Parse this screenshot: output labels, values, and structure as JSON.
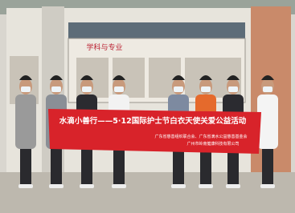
{
  "photo": {
    "banner": {
      "title": "水滴小善行——5·12国际护士节白衣天使关爱公益活动",
      "lines": [
        "广东省慈善组织联合会、广东省滴水公益慈善基金会",
        "广州市岭南健康科技有限公司"
      ]
    },
    "sign": "学科与专业"
  }
}
